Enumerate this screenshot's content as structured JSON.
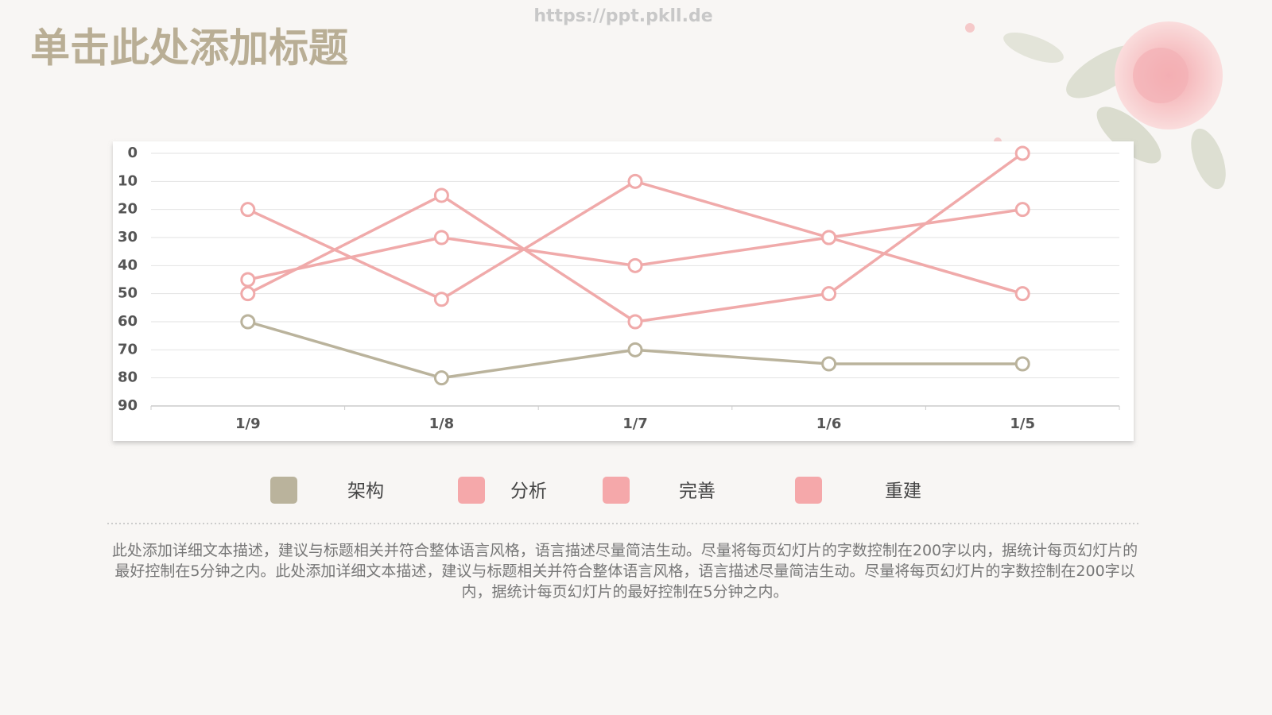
{
  "watermark": "https://ppt.pkll.de",
  "title": "单击此处添加标题",
  "body": "此处添加详细文本描述，建议与标题相关并符合整体语言风格，语言描述尽量简洁生动。尽量将每页幻灯片的字数控制在200字以内，据统计每页幻灯片的最好控制在5分钟之内。此处添加详细文本描述，建议与标题相关并符合整体语言风格，语言描述尽量简洁生动。尽量将每页幻灯片的字数控制在200字以内，据统计每页幻灯片的最好控制在5分钟之内。",
  "chart_data": {
    "type": "line",
    "categories": [
      "1/9",
      "1/8",
      "1/7",
      "1/6",
      "1/5"
    ],
    "series": [
      {
        "name": "架构",
        "color": "#bab39c",
        "values": [
          60,
          80,
          70,
          75,
          75
        ]
      },
      {
        "name": "分析",
        "color": "#f0aaaa",
        "values": [
          20,
          52,
          10,
          30,
          50
        ]
      },
      {
        "name": "完善",
        "color": "#f0aaaa",
        "values": [
          50,
          15,
          60,
          50,
          0
        ]
      },
      {
        "name": "重建",
        "color": "#f0aaaa",
        "values": [
          45,
          30,
          40,
          30,
          20
        ]
      }
    ],
    "ylim": [
      0,
      90
    ],
    "yticks": [
      0,
      10,
      20,
      30,
      40,
      50,
      60,
      70,
      80,
      90
    ],
    "y_reversed": true,
    "grid": true,
    "legend": "bottom"
  }
}
